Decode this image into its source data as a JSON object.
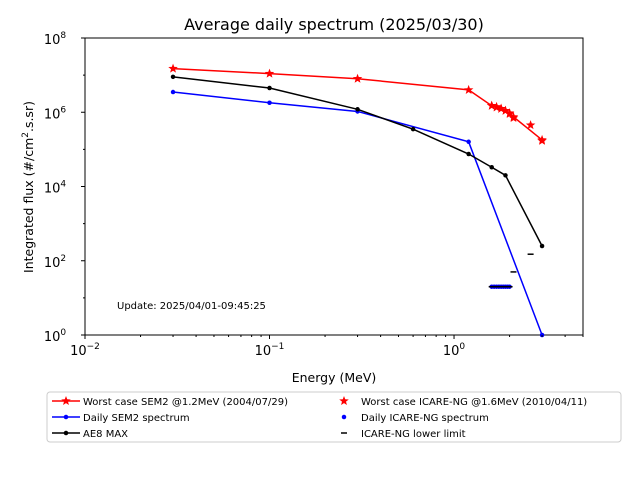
{
  "chart_data": {
    "type": "line",
    "title": "Average daily spectrum (2025/03/30)",
    "xlabel": "Energy (MeV)",
    "ylabel": "Integrated flux (#/cm",
    "ylabel_sup": "2",
    "ylabel_tail": ".s.sr)",
    "x_scale": "log",
    "y_scale": "log",
    "xlim": [
      0.01,
      5
    ],
    "ylim": [
      1,
      100000000
    ],
    "x_ticks": [
      {
        "value": 0.01,
        "base": "10",
        "exp": "−2"
      },
      {
        "value": 0.1,
        "base": "10",
        "exp": "−1"
      },
      {
        "value": 1,
        "base": "10",
        "exp": "0"
      }
    ],
    "y_ticks": [
      {
        "value": 1,
        "base": "10",
        "exp": "0"
      },
      {
        "value": 100,
        "base": "10",
        "exp": "2"
      },
      {
        "value": 10000,
        "base": "10",
        "exp": "4"
      },
      {
        "value": 1000000,
        "base": "10",
        "exp": "6"
      },
      {
        "value": 100000000,
        "base": "10",
        "exp": "8"
      }
    ],
    "annotation": "Update: 2025/04/01-09:45:25",
    "legend_position": "below plot",
    "series": [
      {
        "name": "Worst case SEM2 @1.2MeV (2004/07/29)",
        "color": "#ff0000",
        "style": "line",
        "marker": "star",
        "x": [
          0.03,
          0.1,
          0.3,
          1.2,
          1.6,
          1.7,
          1.8,
          1.9,
          2.0,
          2.1,
          3.0
        ],
        "y": [
          15000000,
          11000000,
          8000000,
          4000000,
          1500000,
          1400000,
          1250000,
          1100000,
          950000,
          750000,
          180000
        ]
      },
      {
        "name": "Daily SEM2 spectrum",
        "color": "#0000ff",
        "style": "line",
        "marker": "dot",
        "x": [
          0.03,
          0.1,
          0.3,
          1.2,
          3.0
        ],
        "y": [
          3500000,
          1800000,
          1050000,
          160000,
          1
        ]
      },
      {
        "name": "AE8 MAX",
        "color": "#000000",
        "style": "line",
        "marker": "dot",
        "x": [
          0.03,
          0.1,
          0.3,
          0.6,
          1.2,
          1.6,
          1.9,
          3.0
        ],
        "y": [
          9000000,
          4500000,
          1200000,
          350000,
          75000,
          33000,
          20000,
          250
        ]
      },
      {
        "name": "Worst case ICARE-NG @1.6MeV (2010/04/11)",
        "color": "#ff0000",
        "style": "scatter",
        "marker": "star",
        "x": [
          1.6,
          1.7,
          1.8,
          1.9,
          2.0,
          2.1,
          2.6,
          3.0
        ],
        "y": [
          1500000,
          1350000,
          1250000,
          1100000,
          900000,
          700000,
          450000,
          170000
        ]
      },
      {
        "name": "Daily ICARE-NG spectrum",
        "color": "#0000ff",
        "style": "scatter",
        "marker": "dot",
        "x": [
          1.6,
          1.65,
          1.7,
          1.75,
          1.8,
          1.85,
          1.9,
          1.95,
          2.0
        ],
        "y": [
          20,
          20,
          20,
          20,
          20,
          20,
          20,
          20,
          20
        ]
      },
      {
        "name": "ICARE-NG lower limit",
        "color": "#000000",
        "style": "scatter",
        "marker": "hline",
        "x": [
          1.6,
          1.65,
          1.7,
          1.75,
          1.8,
          1.85,
          1.9,
          1.95,
          2.0,
          2.1,
          2.6
        ],
        "y": [
          20,
          20,
          20,
          20,
          20,
          20,
          20,
          20,
          20,
          50,
          150
        ]
      }
    ],
    "legend": [
      {
        "series": 0,
        "col": 0,
        "row": 0
      },
      {
        "series": 1,
        "col": 0,
        "row": 1
      },
      {
        "series": 2,
        "col": 0,
        "row": 2
      },
      {
        "series": 3,
        "col": 1,
        "row": 0
      },
      {
        "series": 4,
        "col": 1,
        "row": 1
      },
      {
        "series": 5,
        "col": 1,
        "row": 2
      }
    ]
  }
}
